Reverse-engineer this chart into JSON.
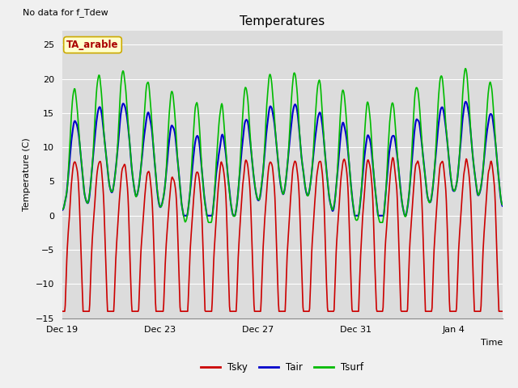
{
  "title": "Temperatures",
  "xlabel": "Time",
  "ylabel": "Temperature (C)",
  "ylim": [
    -15,
    27
  ],
  "yticks": [
    -15,
    -10,
    -5,
    0,
    5,
    10,
    15,
    20,
    25
  ],
  "fig_bg_color": "#f0f0f0",
  "plot_bg_color": "#dcdcdc",
  "grid_color": "#ffffff",
  "no_data_text": "No data for f_Tdew",
  "station_label": "TA_arable",
  "station_label_color": "#aa0000",
  "station_label_bg": "#ffffcc",
  "station_label_border": "#ccaa00",
  "tsky_color": "#cc0000",
  "tair_color": "#0000cc",
  "tsurf_color": "#00bb00",
  "line_width": 1.2,
  "xtick_labels": [
    "Dec 19",
    "Dec 23",
    "Dec 27",
    "Dec 31",
    "Jan 4"
  ],
  "xtick_positions": [
    0,
    4,
    8,
    12,
    16
  ],
  "n_days": 18,
  "ppd": 48,
  "seed": 1234
}
